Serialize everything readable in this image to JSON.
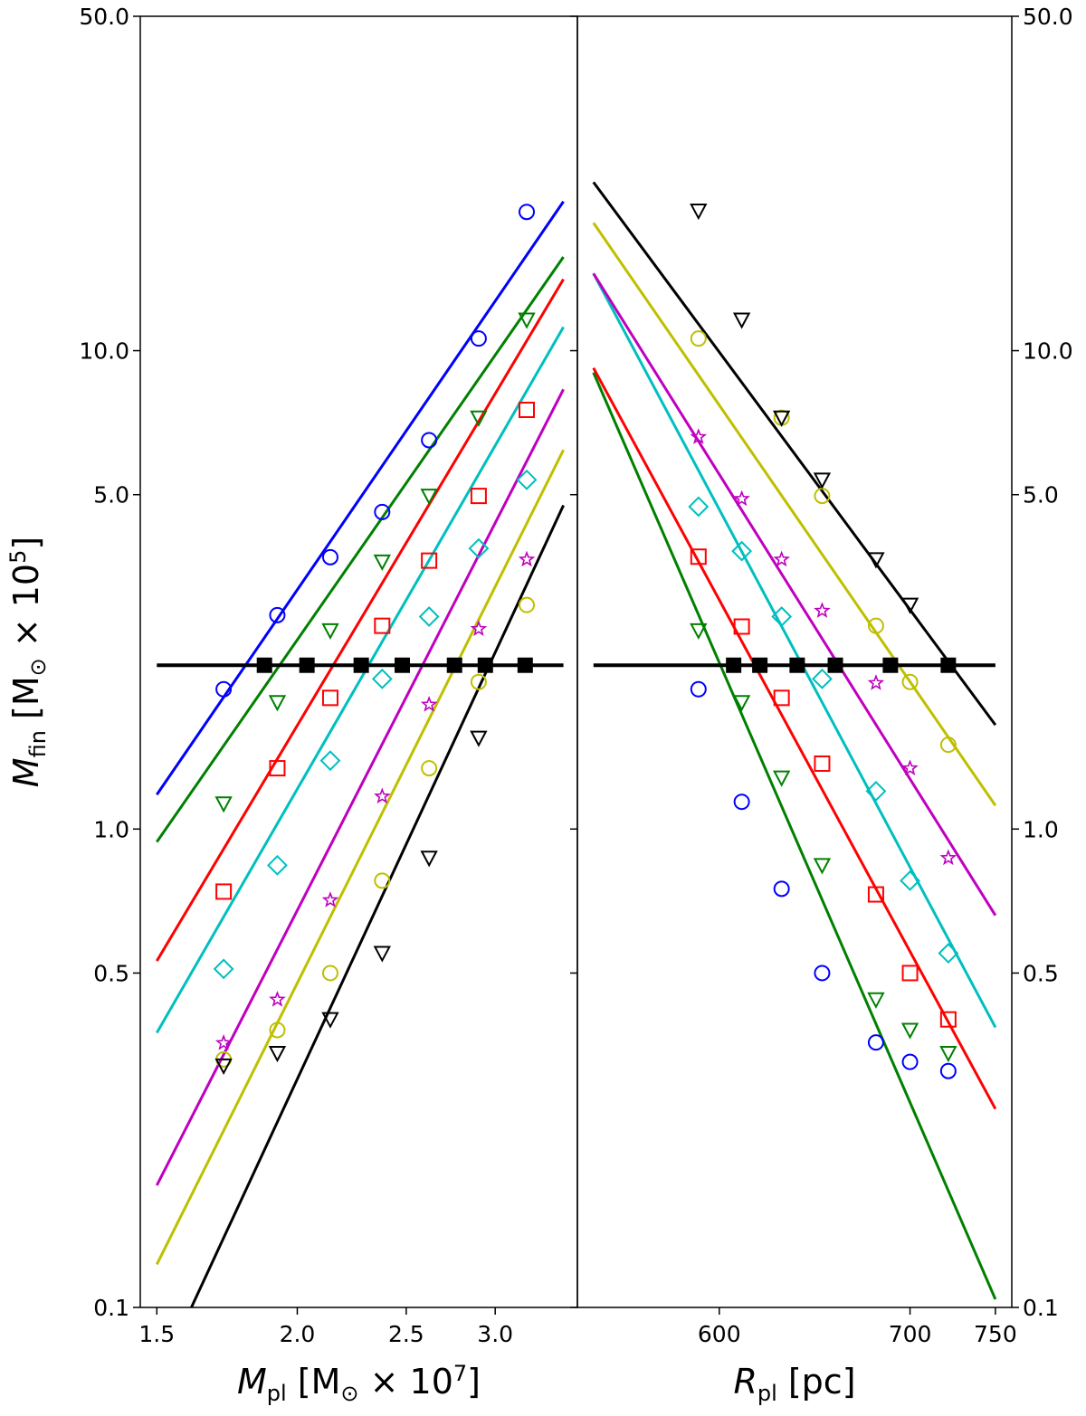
{
  "chart_data": [
    {
      "type": "scatter",
      "panel": "left",
      "title": "",
      "xlabel": {
        "main": "M",
        "sub": "pl",
        "unit": " [M",
        "sun": "⊙",
        "times": " × 10",
        "exp": "7",
        "close": "]"
      },
      "ylabel": {
        "main": "M",
        "sub": "fin",
        "unit": " [M",
        "sun": "⊙",
        "times": " × 10",
        "exp": "5",
        "close": "]"
      },
      "x_scale": "log",
      "y_scale": "log",
      "xlim": [
        1.45,
        3.55
      ],
      "ylim": [
        0.1,
        50.0
      ],
      "x_ticks": [
        1.5,
        2.0,
        2.5,
        3.0
      ],
      "x_tick_labels": [
        "1.5",
        "2.0",
        "2.5",
        "3.0"
      ],
      "y_ticks": [
        0.1,
        0.5,
        1.0,
        5.0,
        10.0,
        50.0
      ],
      "y_tick_labels": [
        "0.1",
        "0.5",
        "1.0",
        "5.0",
        "10.0",
        "50.0"
      ],
      "series": [
        {
          "color": "#0000ff",
          "marker": "circle",
          "x": [
            1.72,
            1.92,
            2.14,
            2.38,
            2.62,
            2.9,
            3.2
          ],
          "y": [
            1.96,
            2.8,
            3.7,
            4.6,
            6.5,
            10.6,
            19.5
          ],
          "fit": {
            "x": [
              1.5,
              3.45
            ],
            "y": [
              1.18,
              20.5
            ]
          }
        },
        {
          "color": "#008000",
          "marker": "triangle-down",
          "x": [
            1.72,
            1.92,
            2.14,
            2.38,
            2.62,
            2.9,
            3.2
          ],
          "y": [
            1.13,
            1.84,
            2.6,
            3.62,
            4.97,
            7.24,
            11.6
          ],
          "fit": {
            "x": [
              1.5,
              3.45
            ],
            "y": [
              0.94,
              15.7
            ]
          }
        },
        {
          "color": "#ff0000",
          "marker": "square",
          "x": [
            1.72,
            1.92,
            2.14,
            2.38,
            2.62,
            2.9,
            3.2
          ],
          "y": [
            0.74,
            1.34,
            1.88,
            2.66,
            3.64,
            4.97,
            7.52
          ],
          "fit": {
            "x": [
              1.5,
              3.45
            ],
            "y": [
              0.53,
              14.1
            ]
          }
        },
        {
          "color": "#00bfbf",
          "marker": "diamond",
          "x": [
            1.72,
            1.92,
            2.14,
            2.38,
            2.62,
            2.9,
            3.2
          ],
          "y": [
            0.51,
            0.84,
            1.39,
            2.06,
            2.78,
            3.86,
            5.37
          ],
          "fit": {
            "x": [
              1.5,
              3.45
            ],
            "y": [
              0.375,
              11.2
            ]
          }
        },
        {
          "color": "#bf00bf",
          "marker": "star",
          "x": [
            1.72,
            1.92,
            2.14,
            2.38,
            2.62,
            2.9,
            3.2
          ],
          "y": [
            0.357,
            0.44,
            0.71,
            1.17,
            1.82,
            2.62,
            3.66
          ],
          "fit": {
            "x": [
              1.5,
              3.45
            ],
            "y": [
              0.18,
              8.3
            ]
          }
        },
        {
          "color": "#bfbf00",
          "marker": "circle",
          "x": [
            1.72,
            1.92,
            2.14,
            2.38,
            2.62,
            2.9,
            3.2
          ],
          "y": [
            0.33,
            0.38,
            0.5,
            0.78,
            1.34,
            2.03,
            2.94
          ],
          "fit": {
            "x": [
              1.5,
              3.45
            ],
            "y": [
              0.123,
              6.2
            ]
          }
        },
        {
          "color": "#000000",
          "marker": "triangle-down",
          "x": [
            1.72,
            1.92,
            2.14,
            2.38,
            2.62,
            2.9
          ],
          "y": [
            0.32,
            0.34,
            0.4,
            0.55,
            0.87,
            1.55
          ],
          "fit": {
            "x": [
              1.61,
              3.45
            ],
            "y": [
              0.1,
              4.75
            ]
          }
        }
      ],
      "threshold": {
        "y": 2.2,
        "x": [
          1.5,
          3.45
        ],
        "color": "#000000"
      },
      "intersections": {
        "y": 2.2,
        "x": [
          1.87,
          2.04,
          2.28,
          2.48,
          2.76,
          2.94,
          3.19
        ],
        "marker": "filled-square"
      }
    },
    {
      "type": "scatter",
      "panel": "right",
      "title": "",
      "xlabel": {
        "main": "R",
        "sub": "pl",
        "unit": " [pc]"
      },
      "ylabel": "",
      "x_scale": "log",
      "y_scale": "log",
      "xlim": [
        535,
        760
      ],
      "ylim": [
        0.1,
        50.0
      ],
      "x_ticks": [
        600,
        700,
        750
      ],
      "x_tick_labels": [
        "600",
        "700",
        "750"
      ],
      "y_ticks": [
        0.1,
        0.5,
        1.0,
        5.0,
        10.0,
        50.0
      ],
      "y_tick_labels": [
        "0.1",
        "0.5",
        "1.0",
        "5.0",
        "10.0",
        "50.0"
      ],
      "series": [
        {
          "color": "#0000ff",
          "marker": "circle",
          "x": [
            590,
            611,
            631,
            652,
            681,
            700,
            722
          ],
          "y": [
            1.96,
            1.14,
            0.75,
            0.5,
            0.358,
            0.326,
            0.312
          ],
          "fit": null
        },
        {
          "color": "#008000",
          "marker": "triangle-down",
          "x": [
            590,
            611,
            631,
            652,
            681,
            700,
            722
          ],
          "y": [
            2.6,
            1.84,
            1.28,
            0.84,
            0.44,
            0.38,
            0.34
          ],
          "fit": {
            "x": [
              542,
              750
            ],
            "y": [
              9.0,
              0.104
            ]
          }
        },
        {
          "color": "#ff0000",
          "marker": "square",
          "x": [
            590,
            611,
            631,
            652,
            681,
            700,
            722
          ],
          "y": [
            3.71,
            2.65,
            1.88,
            1.37,
            0.73,
            0.5,
            0.4
          ],
          "fit": {
            "x": [
              542,
              750
            ],
            "y": [
              9.2,
              0.26
            ]
          }
        },
        {
          "color": "#00bfbf",
          "marker": "diamond",
          "x": [
            590,
            611,
            631,
            652,
            681,
            700,
            722
          ],
          "y": [
            4.72,
            3.81,
            2.78,
            2.06,
            1.2,
            0.78,
            0.55
          ],
          "fit": {
            "x": [
              542,
              750
            ],
            "y": [
              14.5,
              0.385
            ]
          }
        },
        {
          "color": "#bf00bf",
          "marker": "star",
          "x": [
            590,
            611,
            631,
            652,
            681,
            700,
            722
          ],
          "y": [
            6.6,
            4.9,
            3.66,
            2.86,
            2.02,
            1.34,
            0.87
          ],
          "fit": {
            "x": [
              542,
              750
            ],
            "y": [
              14.5,
              0.66
            ]
          }
        },
        {
          "color": "#bfbf00",
          "marker": "circle",
          "x": [
            590,
            631,
            652,
            681,
            700,
            722
          ],
          "y": [
            10.6,
            7.24,
            4.97,
            2.66,
            2.03,
            1.5
          ],
          "fit": {
            "x": [
              542,
              750
            ],
            "y": [
              18.5,
              1.12
            ]
          }
        },
        {
          "color": "#000000",
          "marker": "triangle-down",
          "x": [
            590,
            611,
            631,
            652,
            681,
            700
          ],
          "y": [
            19.6,
            11.6,
            7.24,
            5.37,
            3.66,
            2.94
          ],
          "fit": {
            "x": [
              542,
              750
            ],
            "y": [
              22.5,
              1.65
            ]
          }
        }
      ],
      "threshold": {
        "y": 2.2,
        "x": [
          542,
          750
        ],
        "color": "#000000"
      },
      "intersections": {
        "y": 2.2,
        "x": [
          607,
          620,
          639,
          659,
          689,
          722
        ],
        "marker": "filled-square"
      }
    }
  ]
}
